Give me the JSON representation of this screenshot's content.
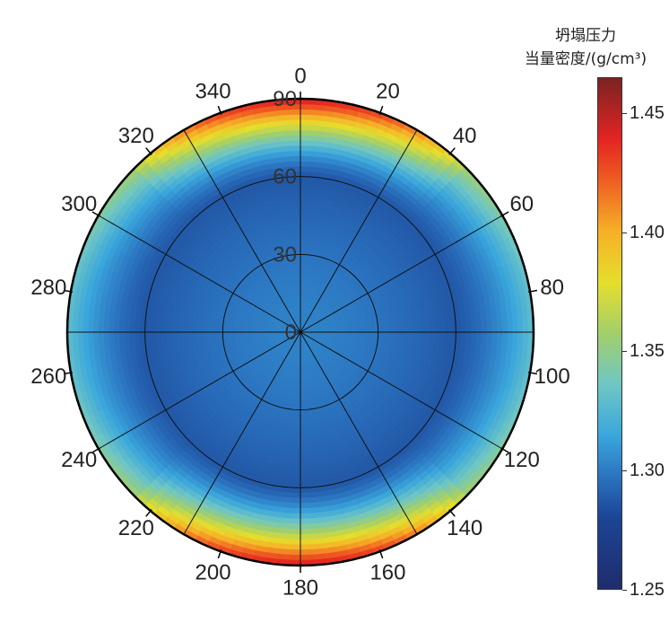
{
  "chart_data": {
    "type": "heatmap",
    "subtype": "polar",
    "angle_ticks": [
      "0",
      "20",
      "40",
      "60",
      "80",
      "100",
      "120",
      "140",
      "160",
      "180",
      "200",
      "220",
      "240",
      "260",
      "280",
      "300",
      "320",
      "340"
    ],
    "radius_labels": [
      "0",
      "30",
      "60",
      "90"
    ],
    "rlim": [
      0,
      90
    ],
    "angle_direction": "clockwise",
    "angle_zero": "top",
    "grid": true,
    "colorbar": {
      "title_line1": "坍塌压力",
      "title_line2": "当量密度/(g/cm³)",
      "range": [
        1.25,
        1.465
      ],
      "tick_labels": [
        "1.25",
        "1.30",
        "1.35",
        "1.40",
        "1.45"
      ],
      "colors": [
        "#1f2c6b",
        "#1c4596",
        "#2b74c0",
        "#3aa6dc",
        "#6fc6c4",
        "#a2cf6a",
        "#e5de2d",
        "#f6b027",
        "#ef5d22",
        "#e42422",
        "#7a2323"
      ]
    },
    "field_description": {
      "inclination_deg_at_max_value_band": 90,
      "max_azimuths_deg": [
        0,
        180
      ],
      "center_value": 1.3,
      "min_value_ring_inclination_deg": 60
    }
  }
}
